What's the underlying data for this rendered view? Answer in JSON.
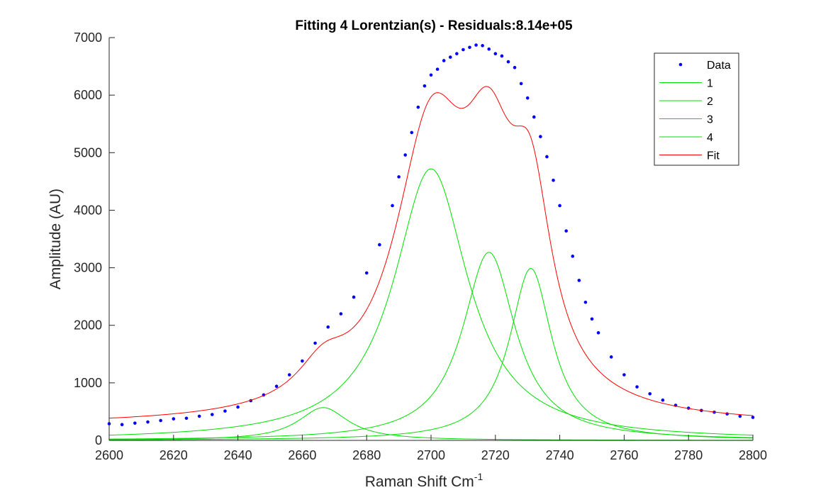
{
  "chart_data": {
    "type": "line",
    "title": "Fitting 4 Lorentzian(s) - Residuals:8.14e+05",
    "xlabel": "Raman Shift Cm",
    "xlabel_superscript": "-1",
    "ylabel": "Amplitude (AU)",
    "xlim": [
      2600,
      2800
    ],
    "ylim": [
      0,
      7000
    ],
    "x_ticks": [
      2600,
      2620,
      2640,
      2660,
      2680,
      2700,
      2720,
      2740,
      2760,
      2780,
      2800
    ],
    "y_ticks": [
      0,
      1000,
      2000,
      3000,
      4000,
      5000,
      6000,
      7000
    ],
    "grid": false,
    "legend_position": "top-right",
    "colors": {
      "data": "#0000ff",
      "components": "#00e000",
      "fit": "#ff0000",
      "axes": "#262626"
    },
    "components": [
      {
        "name": "1",
        "center": 2666.5,
        "amplitude": 570,
        "fwhm": 19
      },
      {
        "name": "2",
        "center": 2700,
        "amplitude": 4720,
        "fwhm": 28
      },
      {
        "name": "3",
        "center": 2718,
        "amplitude": 3270,
        "fwhm": 20
      },
      {
        "name": "4",
        "center": 2731,
        "amplitude": 2990,
        "fwhm": 16
      }
    ],
    "fit": {
      "name": "Fit",
      "baseline": 250
    },
    "data": {
      "name": "Data",
      "x": [
        2600,
        2604,
        2608,
        2612,
        2616,
        2620,
        2624,
        2628,
        2632,
        2636,
        2640,
        2644,
        2648,
        2652,
        2656,
        2660,
        2664,
        2668,
        2672,
        2676,
        2680,
        2684,
        2688,
        2690,
        2692,
        2694,
        2696,
        2698,
        2700,
        2702,
        2704,
        2706,
        2708,
        2710,
        2712,
        2714,
        2716,
        2718,
        2720,
        2722,
        2724,
        2726,
        2728,
        2730,
        2732,
        2734,
        2736,
        2738,
        2740,
        2742,
        2744,
        2746,
        2748,
        2750,
        2752,
        2756,
        2760,
        2764,
        2768,
        2772,
        2776,
        2780,
        2784,
        2788,
        2792,
        2796,
        2800
      ],
      "y": [
        290,
        275,
        300,
        320,
        345,
        375,
        385,
        420,
        450,
        510,
        580,
        690,
        790,
        940,
        1140,
        1380,
        1690,
        1970,
        2200,
        2490,
        2910,
        3400,
        4080,
        4580,
        4960,
        5350,
        5790,
        6160,
        6350,
        6450,
        6600,
        6660,
        6720,
        6790,
        6830,
        6870,
        6860,
        6800,
        6720,
        6680,
        6580,
        6480,
        6200,
        5950,
        5620,
        5280,
        4930,
        4520,
        4080,
        3640,
        3200,
        2780,
        2400,
        2110,
        1870,
        1450,
        1140,
        930,
        810,
        700,
        610,
        560,
        520,
        490,
        460,
        420,
        400
      ]
    }
  },
  "legend": {
    "items": [
      {
        "label": "Data"
      },
      {
        "label": "1"
      },
      {
        "label": "2"
      },
      {
        "label": "3"
      },
      {
        "label": "4"
      },
      {
        "label": "Fit"
      }
    ]
  }
}
